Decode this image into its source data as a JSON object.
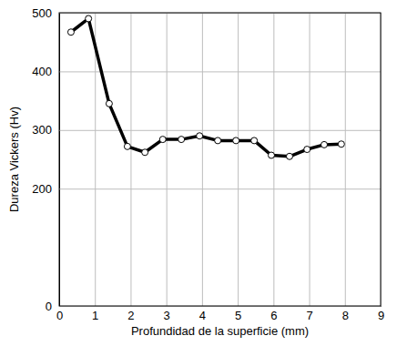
{
  "chart_data": {
    "type": "line",
    "x_label": "Profundidad de la superficie (mm)",
    "y_label": "Dureza Vickers (Hv)",
    "x": [
      0.33,
      0.82,
      1.4,
      1.91,
      2.4,
      2.9,
      3.42,
      3.93,
      4.44,
      4.95,
      5.46,
      5.94,
      6.45,
      6.94,
      7.42,
      7.9
    ],
    "values": [
      467,
      490,
      345,
      272,
      262,
      284,
      284,
      290,
      282,
      282,
      282,
      257,
      255,
      267,
      275,
      276
    ],
    "color": "#000000",
    "marker": "circle",
    "xlim": [
      0,
      9
    ],
    "xticks": [
      0,
      1,
      2,
      3,
      4,
      5,
      6,
      7,
      8,
      9
    ],
    "ylim": [
      0,
      500
    ],
    "yticks": [
      0,
      200,
      300,
      400,
      500
    ],
    "grid": true
  }
}
